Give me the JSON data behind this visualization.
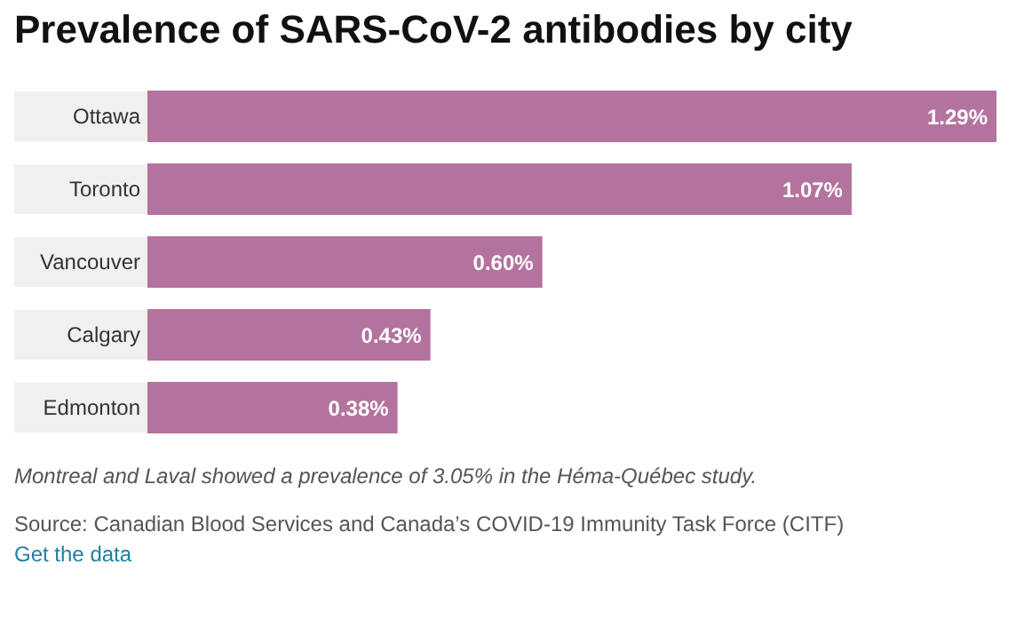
{
  "chart_data": {
    "type": "bar",
    "orientation": "horizontal",
    "title": "Prevalence of SARS-CoV-2 antibodies by city",
    "categories": [
      "Ottawa",
      "Toronto",
      "Vancouver",
      "Calgary",
      "Edmonton"
    ],
    "values": [
      1.29,
      1.07,
      0.6,
      0.43,
      0.38
    ],
    "value_labels": [
      "1.29%",
      "1.07%",
      "0.60%",
      "0.43%",
      "0.38%"
    ],
    "color": "#b4739e",
    "annotations": [
      "Montreal and Laval showed a prevalence of 3.05% in the Héma-Québec study.",
      "Source: Canadian Blood Services and Canada’s COVID-19 Immunity Task Force (CITF)",
      "Get the data"
    ]
  }
}
